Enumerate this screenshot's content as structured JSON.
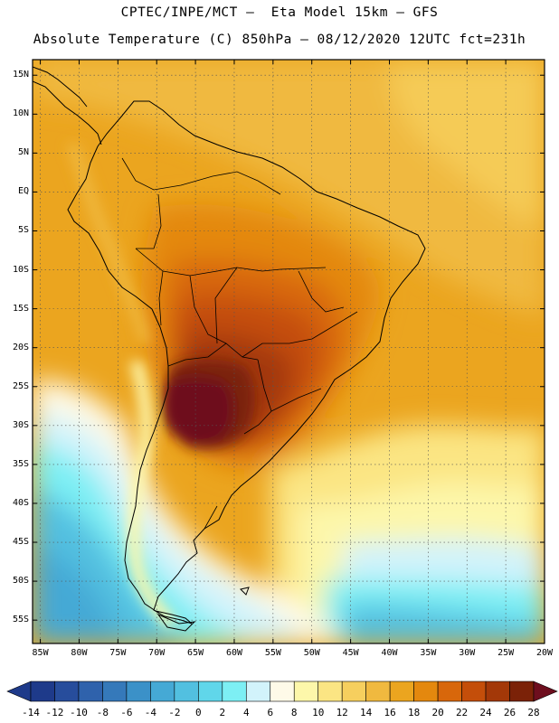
{
  "header": {
    "line1": "CPTEC/INPE/MCT –  Eta Model 15km – GFS",
    "line2": "Absolute Temperature (C) 850hPa – 08/12/2020 12UTC fct=231h"
  },
  "map": {
    "lat_labels": [
      "15N",
      "10N",
      "5N",
      "EQ",
      "5S",
      "10S",
      "15S",
      "20S",
      "25S",
      "30S",
      "35S",
      "40S",
      "45S",
      "50S",
      "55S"
    ],
    "lat_values": [
      15,
      10,
      5,
      0,
      -5,
      -10,
      -15,
      -20,
      -25,
      -30,
      -35,
      -40,
      -45,
      -50,
      -55
    ],
    "lon_labels": [
      "85W",
      "80W",
      "75W",
      "70W",
      "65W",
      "60W",
      "55W",
      "50W",
      "45W",
      "40W",
      "35W",
      "30W",
      "25W",
      "20W"
    ],
    "lon_values": [
      -85,
      -80,
      -75,
      -70,
      -65,
      -60,
      -55,
      -50,
      -45,
      -40,
      -35,
      -30,
      -25,
      -20
    ],
    "lat_range": [
      -58,
      17
    ],
    "lon_range": [
      -86,
      -20
    ]
  },
  "colorbar": {
    "labels": [
      "-14",
      "-12",
      "-10",
      "-8",
      "-6",
      "-4",
      "-2",
      "0",
      "2",
      "4",
      "6",
      "8",
      "10",
      "12",
      "14",
      "16",
      "18",
      "20",
      "22",
      "24",
      "26",
      "28"
    ],
    "colors": [
      "#1e3a8a",
      "#274d9c",
      "#2f62ac",
      "#3579ba",
      "#3b91c8",
      "#45a9d5",
      "#52c0e0",
      "#60d6ea",
      "#7deff4",
      "#d2f3fb",
      "#fefae8",
      "#fdf7aa",
      "#fbe583",
      "#f6cf5e",
      "#f0b93f",
      "#eba51f",
      "#e4880e",
      "#d8670b",
      "#c44e0a",
      "#a33808",
      "#7b2208"
    ],
    "under_color": "#1e3a8a",
    "over_color": "#6e0e1e"
  }
}
